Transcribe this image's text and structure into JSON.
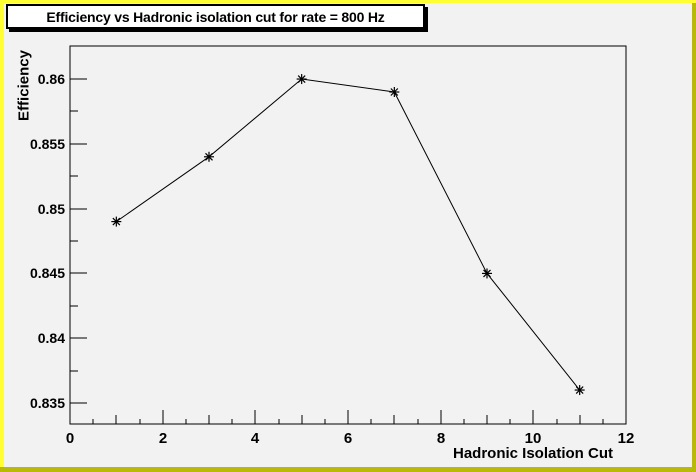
{
  "canvas": {
    "bg_color": "#f2f2f2",
    "border_highlight_color": "#ffff33",
    "border_shadow_color": "#b9b909",
    "title_box_bg": "#ffffff",
    "title_box_border": "#000000"
  },
  "title": {
    "text": "Efficiency vs Hadronic isolation cut for rate = 800 Hz"
  },
  "chart_data": {
    "type": "line",
    "title": "Efficiency vs Hadronic isolation cut for rate = 800 Hz",
    "xlabel": "Hadronic Isolation Cut",
    "ylabel": "Efficiency",
    "x": [
      1,
      3,
      5,
      7,
      9,
      11
    ],
    "y": [
      0.849,
      0.854,
      0.86,
      0.859,
      0.845,
      0.836
    ],
    "xlim": [
      0,
      12
    ],
    "ylim": [
      0.83338,
      0.86255
    ],
    "x_ticks": {
      "major_values": [
        0,
        2,
        4,
        6,
        8,
        10,
        12
      ],
      "major_labels": [
        "0",
        "2",
        "4",
        "6",
        "8",
        "10",
        "12"
      ],
      "mid_values": [
        1,
        3,
        5,
        7,
        9,
        11
      ],
      "minor_step": 0.5
    },
    "y_ticks": {
      "major_values": [
        0.86,
        0.855,
        0.85,
        0.845,
        0.84,
        0.835
      ],
      "major_labels": [
        "0.86",
        "0.855",
        "0.85",
        "0.845",
        "0.84",
        "0.835"
      ],
      "minor_values": [
        0.8575,
        0.8525,
        0.8475,
        0.8425,
        0.8375
      ]
    },
    "marker": "asterisk",
    "marker_color": "#000000",
    "line_color": "#000000",
    "frame_color": "#000000",
    "grid": false,
    "legend": false
  }
}
